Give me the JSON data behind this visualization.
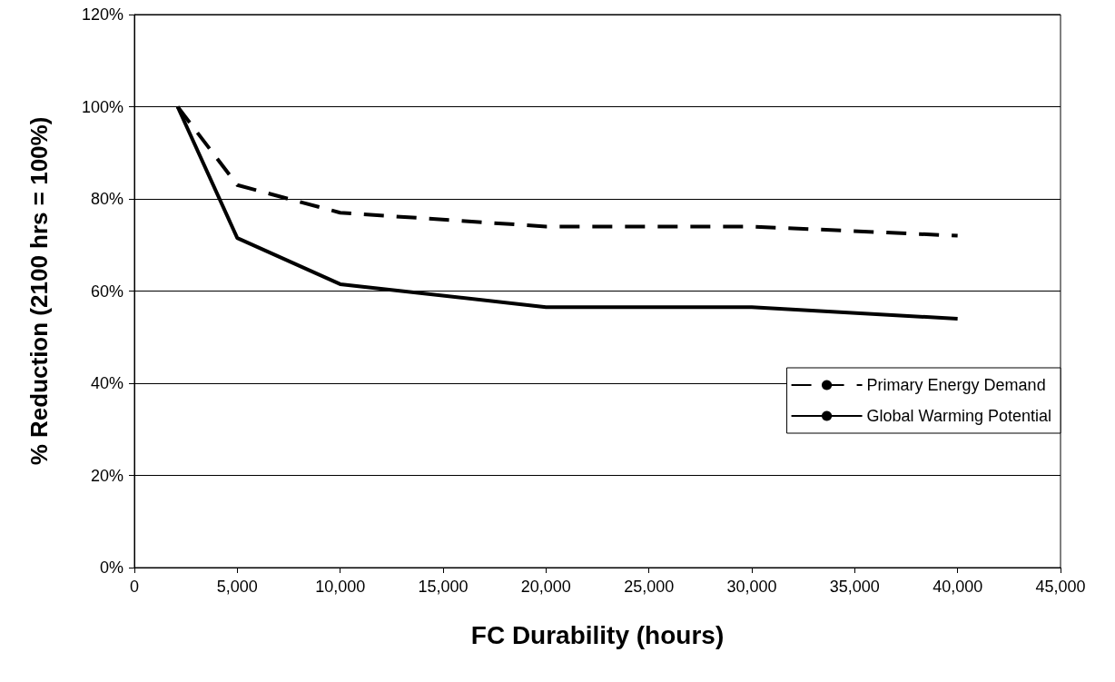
{
  "chart_data": {
    "type": "line",
    "xlabel": "FC Durability (hours)",
    "ylabel": "% Reduction (2100 hrs = 100%)",
    "x": [
      2100,
      5000,
      10000,
      20000,
      30000,
      40000
    ],
    "series": [
      {
        "name": "Primary Energy Demand",
        "color": "#000000",
        "line_style": "dashed",
        "values": [
          100,
          83,
          77,
          74,
          74,
          72
        ]
      },
      {
        "name": "Global Warming Potential",
        "color": "#000000",
        "line_style": "solid",
        "values": [
          100,
          71.5,
          61.5,
          56.5,
          56.5,
          54
        ]
      }
    ],
    "xlim": [
      0,
      45000
    ],
    "xticks": [
      {
        "value": 0,
        "label": "0"
      },
      {
        "value": 5000,
        "label": "5,000"
      },
      {
        "value": 10000,
        "label": "10,000"
      },
      {
        "value": 15000,
        "label": "15,000"
      },
      {
        "value": 20000,
        "label": "20,000"
      },
      {
        "value": 25000,
        "label": "25,000"
      },
      {
        "value": 30000,
        "label": "30,000"
      },
      {
        "value": 35000,
        "label": "35,000"
      },
      {
        "value": 40000,
        "label": "40,000"
      },
      {
        "value": 45000,
        "label": "45,000"
      }
    ],
    "ylim": [
      0,
      120
    ],
    "yticks": [
      {
        "value": 0,
        "label": "0%"
      },
      {
        "value": 20,
        "label": "20%"
      },
      {
        "value": 40,
        "label": "40%"
      },
      {
        "value": 60,
        "label": "60%"
      },
      {
        "value": 80,
        "label": "80%"
      },
      {
        "value": 100,
        "label": "100%"
      },
      {
        "value": 120,
        "label": "120%"
      }
    ],
    "grid": "y",
    "legend": "right",
    "marker": "none"
  }
}
